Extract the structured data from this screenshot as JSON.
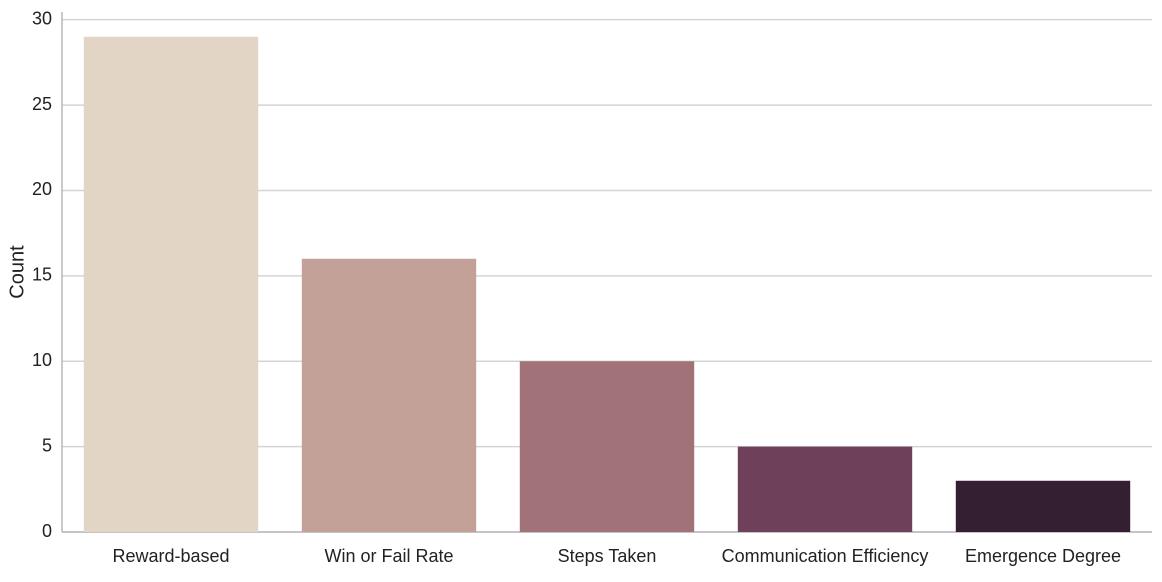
{
  "chart_data": {
    "type": "bar",
    "y_label": "Count",
    "categories": [
      "Reward-based",
      "Win or Fail Rate",
      "Steps Taken",
      "Communication Efficiency",
      "Emergence Degree"
    ],
    "values": [
      29,
      16,
      10,
      5,
      3
    ],
    "colors": [
      "#e2d5c6",
      "#c4a198",
      "#a27279",
      "#6f405a",
      "#341e32"
    ],
    "ylim": [
      0,
      30.45
    ],
    "yticks": [
      0,
      5,
      10,
      15,
      20,
      25,
      30
    ],
    "grid": true
  }
}
